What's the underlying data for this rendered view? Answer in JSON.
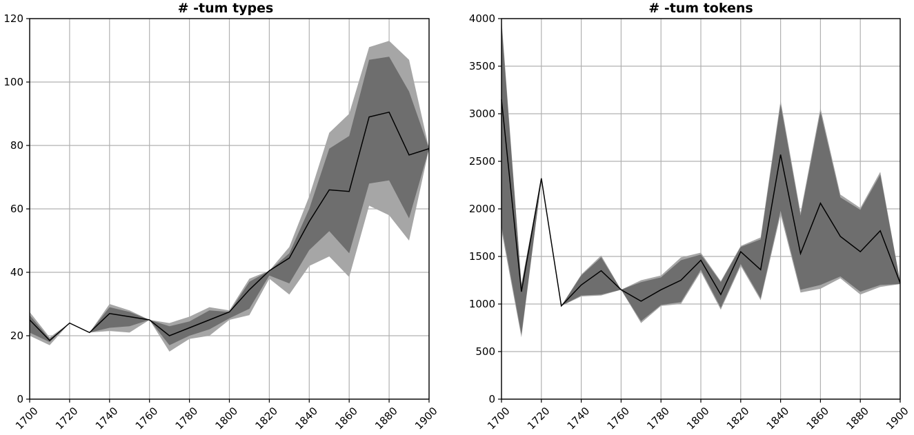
{
  "chart_data": [
    {
      "type": "line",
      "title": "# -tum types",
      "xlabel": "",
      "ylabel": "",
      "xlim": [
        1700,
        1900
      ],
      "ylim": [
        0,
        120
      ],
      "xticks": [
        "1700",
        "1720",
        "1740",
        "1760",
        "1780",
        "1800",
        "1820",
        "1840",
        "1860",
        "1880",
        "1900"
      ],
      "yticks": [
        "0",
        "20",
        "40",
        "60",
        "80",
        "100",
        "120"
      ],
      "grid": true,
      "x": [
        1700,
        1710,
        1720,
        1730,
        1740,
        1750,
        1760,
        1770,
        1780,
        1790,
        1800,
        1810,
        1820,
        1830,
        1840,
        1850,
        1860,
        1870,
        1880,
        1890,
        1900
      ],
      "series": [
        {
          "values": [
            25,
            18.5,
            24,
            21,
            27,
            26,
            25,
            20,
            22.5,
            25,
            27.5,
            34.5,
            40.5,
            44.5,
            56,
            66,
            65.5,
            89,
            90.5,
            77,
            79
          ]
        }
      ],
      "bands": {
        "outer": {
          "color": "#a6a6a6",
          "lower": [
            20,
            17,
            24,
            21,
            21.5,
            21,
            25,
            15,
            19,
            20,
            25,
            26.5,
            38,
            33,
            42,
            45,
            38.5,
            61,
            58,
            50,
            79
          ],
          "upper": [
            27.5,
            19.5,
            24,
            21,
            30,
            28,
            25,
            24,
            26,
            29,
            28,
            38,
            40.5,
            48,
            64,
            84,
            90,
            111,
            113,
            107,
            79
          ]
        },
        "inner": {
          "color": "#6e6e6e",
          "lower": [
            21,
            18,
            24,
            21,
            22.5,
            23,
            25,
            17,
            20,
            22,
            25.5,
            28.5,
            39,
            36.5,
            47,
            53,
            46,
            68,
            69,
            57,
            79
          ],
          "upper": [
            26.5,
            19,
            24,
            21,
            29,
            27.5,
            25,
            23,
            24.5,
            28,
            27.5,
            37,
            40.5,
            46,
            60,
            79,
            83,
            107,
            108,
            97,
            79
          ]
        }
      }
    },
    {
      "type": "line",
      "title": "# -tum tokens",
      "xlabel": "",
      "ylabel": "",
      "xlim": [
        1700,
        1900
      ],
      "ylim": [
        0,
        4000
      ],
      "xticks": [
        "1700",
        "1720",
        "1740",
        "1760",
        "1780",
        "1800",
        "1820",
        "1840",
        "1860",
        "1880",
        "1900"
      ],
      "yticks": [
        "0",
        "500",
        "1000",
        "1500",
        "2000",
        "2500",
        "3000",
        "3500",
        "4000"
      ],
      "grid": true,
      "x": [
        1700,
        1710,
        1720,
        1730,
        1740,
        1750,
        1760,
        1770,
        1780,
        1790,
        1800,
        1810,
        1820,
        1830,
        1840,
        1850,
        1860,
        1870,
        1880,
        1890,
        1900
      ],
      "series": [
        {
          "values": [
            3150,
            1130,
            2320,
            980,
            1200,
            1350,
            1150,
            1030,
            1150,
            1250,
            1460,
            1100,
            1550,
            1360,
            2570,
            1530,
            2060,
            1710,
            1550,
            1770,
            1220
          ]
        }
      ],
      "bands": {
        "outer": {
          "color": "#a6a6a6",
          "lower": [
            1770,
            650,
            2300,
            980,
            1080,
            1090,
            1150,
            800,
            980,
            1000,
            1340,
            940,
            1400,
            1040,
            1940,
            1120,
            1160,
            1270,
            1100,
            1180,
            1210
          ],
          "upper": [
            4000,
            1210,
            2330,
            980,
            1310,
            1510,
            1150,
            1250,
            1300,
            1490,
            1540,
            1240,
            1610,
            1700,
            3140,
            1960,
            3060,
            2150,
            2010,
            2390,
            1230
          ]
        },
        "inner": {
          "color": "#6e6e6e",
          "lower": [
            1820,
            680,
            2300,
            980,
            1090,
            1100,
            1150,
            820,
            990,
            1020,
            1360,
            960,
            1420,
            1060,
            1980,
            1150,
            1200,
            1290,
            1130,
            1200,
            1210
          ],
          "upper": [
            3950,
            1200,
            2330,
            980,
            1300,
            1490,
            1150,
            1230,
            1280,
            1460,
            1520,
            1230,
            1600,
            1680,
            3100,
            1930,
            3020,
            2120,
            1990,
            2360,
            1230
          ]
        }
      }
    }
  ]
}
